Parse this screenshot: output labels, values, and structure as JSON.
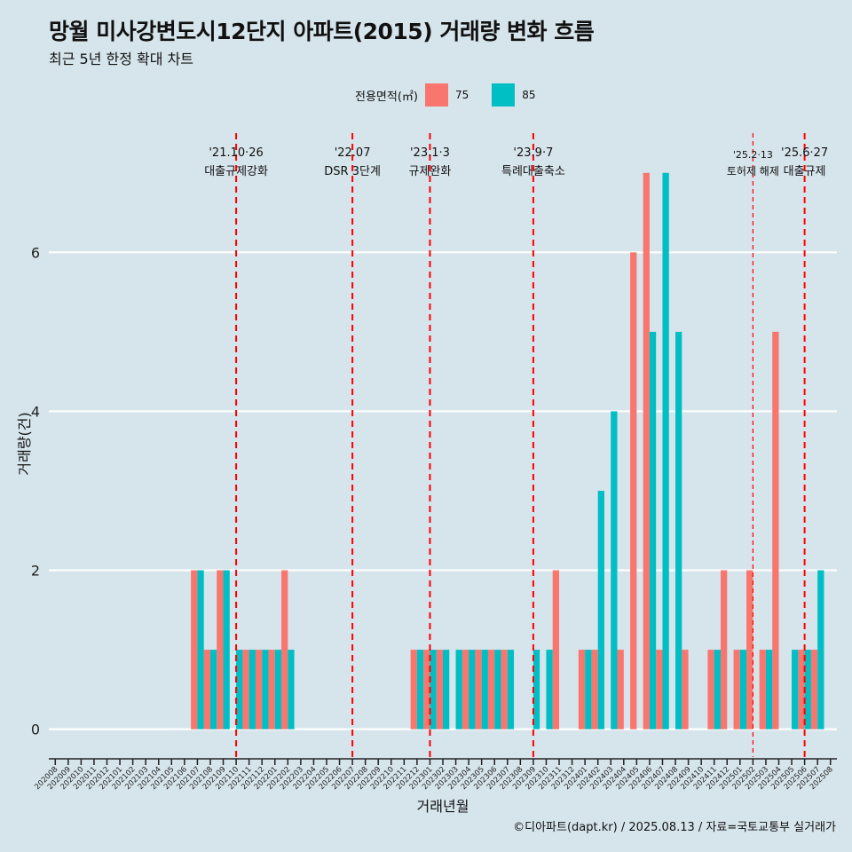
{
  "title": "망월 미사강변도시12단지 아파트(2015) 거래량 변화 흐름",
  "subtitle": "최근 5년 한정 확대 차트",
  "caption": "©디아파트(dapt.kr) / 2025.08.13 / 자료=국토교통부 실거래가",
  "colors": {
    "background": "#d6e4eb",
    "s75": "#f8766d",
    "s85": "#00bfc4",
    "event": "#ff0000",
    "grid": "#ffffff"
  },
  "chart_data": {
    "type": "bar",
    "xlabel": "거래년월",
    "ylabel": "거래량(건)",
    "ylim": [
      -0.35,
      7.5
    ],
    "yticks": [
      0,
      2,
      4,
      6
    ],
    "legend": {
      "title": "전용면적(㎡)",
      "placement": "top"
    },
    "categories": [
      "202008",
      "202009",
      "202010",
      "202011",
      "202012",
      "202101",
      "202102",
      "202103",
      "202104",
      "202105",
      "202106",
      "202107",
      "202108",
      "202109",
      "202110",
      "202111",
      "202112",
      "202201",
      "202202",
      "202203",
      "202204",
      "202205",
      "202206",
      "202207",
      "202208",
      "202209",
      "202210",
      "202211",
      "202212",
      "202301",
      "202302",
      "202303",
      "202304",
      "202305",
      "202306",
      "202307",
      "202308",
      "202309",
      "202310",
      "202311",
      "202312",
      "202401",
      "202402",
      "202403",
      "202404",
      "202405",
      "202406",
      "202407",
      "202408",
      "202409",
      "202410",
      "202411",
      "202412",
      "202501",
      "202502",
      "202503",
      "202504",
      "202505",
      "202506",
      "202507",
      "202508"
    ],
    "series": [
      {
        "name": "75",
        "values": [
          0,
          0,
          0,
          0,
          0,
          0,
          0,
          0,
          0,
          0,
          0,
          2,
          1,
          2,
          0,
          1,
          1,
          1,
          2,
          0,
          0,
          0,
          0,
          0,
          0,
          0,
          0,
          0,
          1,
          1,
          1,
          0,
          1,
          1,
          1,
          1,
          0,
          0,
          0,
          2,
          0,
          1,
          1,
          0,
          1,
          6,
          7,
          1,
          0,
          1,
          0,
          1,
          2,
          1,
          2,
          1,
          5,
          0,
          1,
          1,
          0
        ]
      },
      {
        "name": "85",
        "values": [
          0,
          0,
          0,
          0,
          0,
          0,
          0,
          0,
          0,
          0,
          0,
          2,
          1,
          2,
          1,
          1,
          1,
          1,
          1,
          0,
          0,
          0,
          0,
          0,
          0,
          0,
          0,
          0,
          1,
          1,
          1,
          1,
          1,
          1,
          1,
          1,
          0,
          1,
          1,
          0,
          0,
          1,
          3,
          4,
          0,
          0,
          5,
          7,
          5,
          0,
          0,
          1,
          0,
          1,
          0,
          1,
          0,
          1,
          1,
          2,
          0
        ]
      }
    ],
    "events": [
      {
        "category": "202110",
        "date": "'21.10·26",
        "label": "대출규제강화",
        "style": "dashed-heavy"
      },
      {
        "category": "202207",
        "date": "'22.07",
        "label": "DSR 3단계",
        "style": "dashed-heavy"
      },
      {
        "category": "202301",
        "date": "'23.1·3",
        "label": "규제완화",
        "style": "dashed-heavy"
      },
      {
        "category": "202309",
        "date": "'23.9·7",
        "label": "특례대출축소",
        "style": "dashed-heavy"
      },
      {
        "category": "202502",
        "date": "'25.2·13",
        "label": "토허제 해제",
        "style": "dashed-thin"
      },
      {
        "category": "202506",
        "date": "'25.6·27",
        "label": "대출규제",
        "style": "dashed-heavy"
      }
    ]
  }
}
